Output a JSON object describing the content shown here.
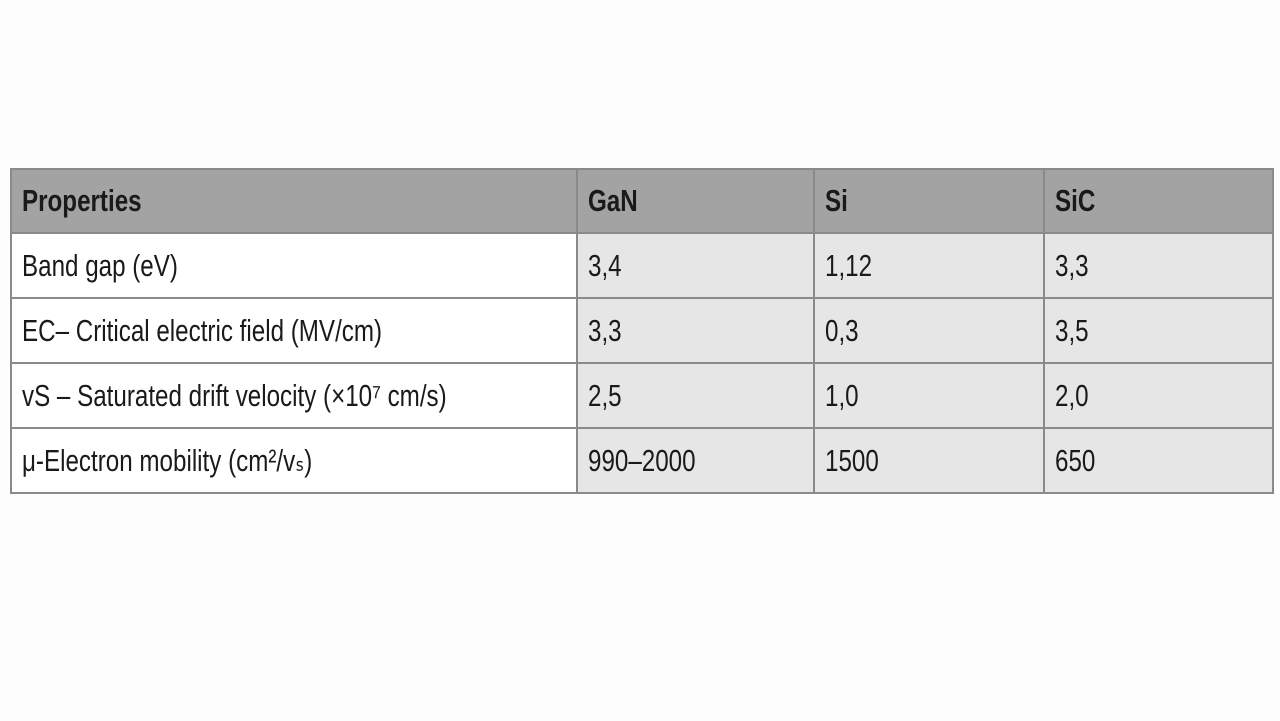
{
  "table": {
    "header": [
      "Properties",
      "GaN",
      "Si",
      "SiC"
    ],
    "rows": [
      [
        "Band gap (eV)",
        "3,4",
        "1,12",
        "3,3"
      ],
      [
        "EC– Critical electric field (MV/cm)",
        "3,3",
        "0,3",
        "3,5"
      ],
      [
        "vS – Saturated drift velocity (×10⁷ cm/s)",
        "2,5",
        "1,0",
        "2,0"
      ],
      [
        "μ-Electron mobility (cm²/vₛ)",
        "990–2000",
        "1500",
        "650"
      ]
    ]
  }
}
